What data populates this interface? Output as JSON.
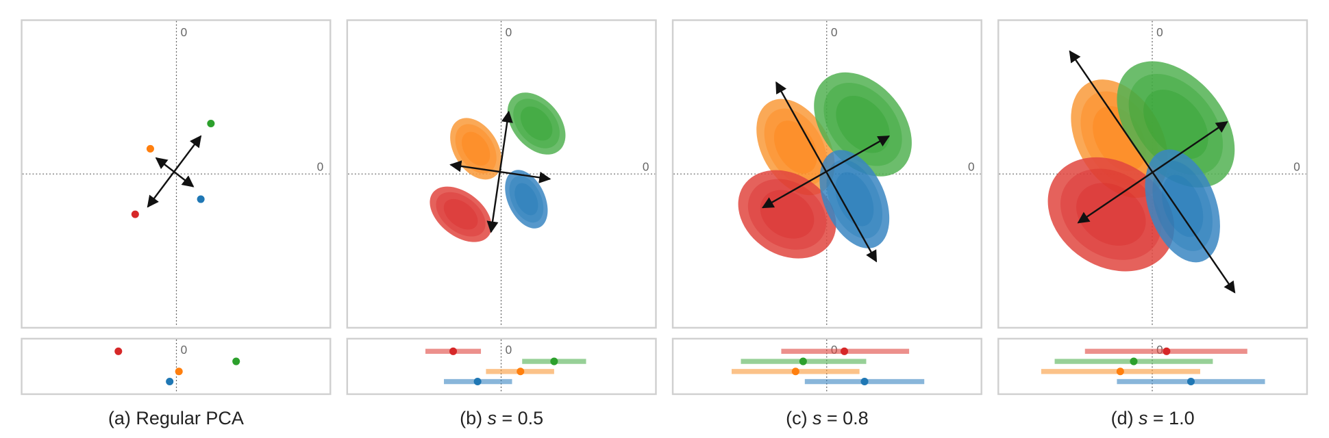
{
  "panels": [
    {
      "caption": {
        "label": "(a) Regular PCA"
      },
      "axis_label": "0"
    },
    {
      "caption": {
        "label": "(b)",
        "var": "s",
        "value": "= 0.5"
      },
      "axis_label": "0"
    },
    {
      "caption": {
        "label": "(c)",
        "var": "s",
        "value": "= 0.8"
      },
      "axis_label": "0"
    },
    {
      "caption": {
        "label": "(d)",
        "var": "s",
        "value": "= 1.0"
      },
      "axis_label": "0"
    }
  ]
}
